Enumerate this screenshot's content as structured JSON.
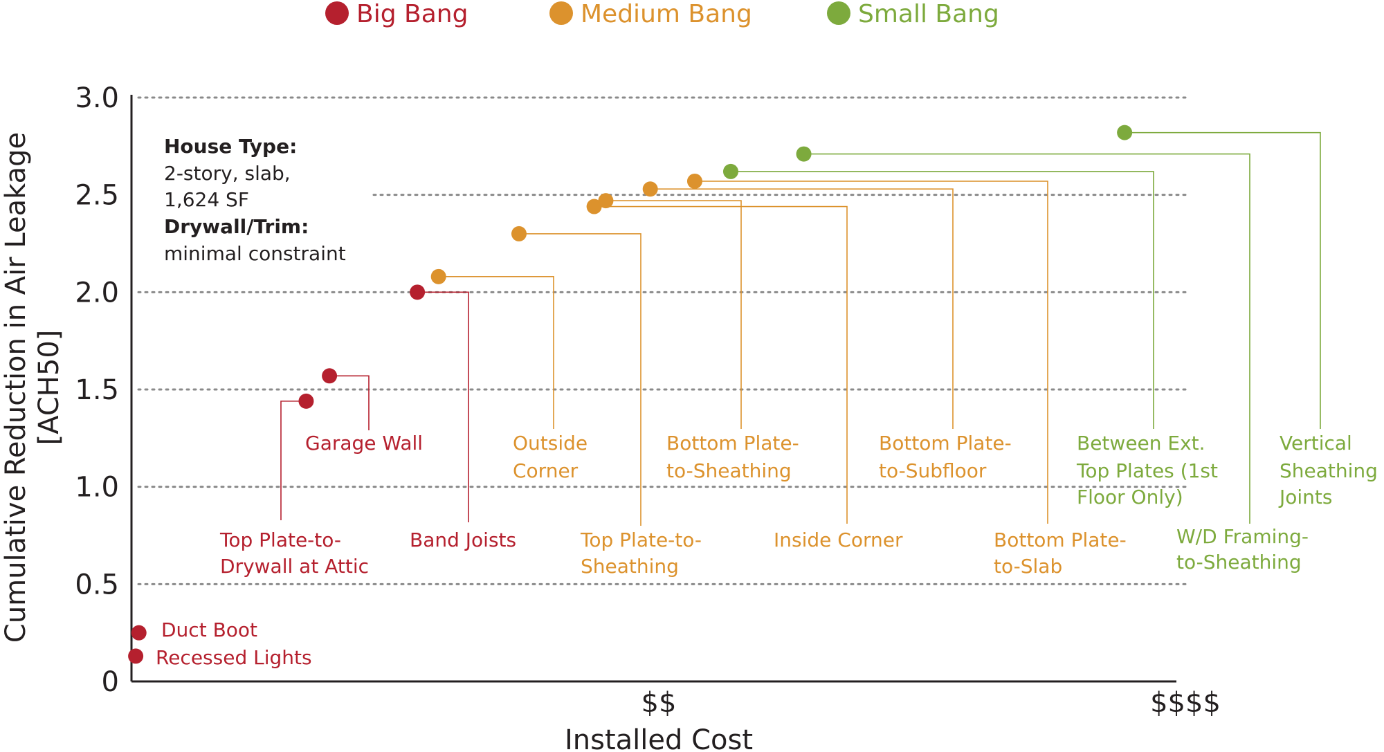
{
  "chart_data": {
    "type": "scatter",
    "xlabel": "Installed Cost",
    "ylabel_lines": [
      "Cumulative Reduction in Air Leakage",
      "[ACH50]"
    ],
    "ylim": [
      0,
      3.0
    ],
    "yticks": [
      {
        "value": 0,
        "label": "0"
      },
      {
        "value": 0.5,
        "label": "0.5"
      },
      {
        "value": 1.0,
        "label": "1.0"
      },
      {
        "value": 1.5,
        "label": "1.5"
      },
      {
        "value": 2.0,
        "label": "2.0"
      },
      {
        "value": 2.5,
        "label": "2.5"
      },
      {
        "value": 3.0,
        "label": "3.0"
      }
    ],
    "xticks": [
      {
        "value": 0.5,
        "label": "$$"
      },
      {
        "value": 1.0,
        "label": "$$$$"
      }
    ],
    "xlim": [
      0,
      1.0
    ],
    "grid": true,
    "legend": "top",
    "colors": {
      "big": "#b5202e",
      "medium": "#dc922d",
      "small": "#7daa3d"
    },
    "legend_entries": [
      {
        "key": "big",
        "label": "Big Bang"
      },
      {
        "key": "medium",
        "label": "Medium Bang"
      },
      {
        "key": "small",
        "label": "Small Bang"
      }
    ],
    "annotation": {
      "lines": [
        {
          "text": "House Type:",
          "bold": true
        },
        {
          "text": "2-story, slab,",
          "bold": false
        },
        {
          "text": "1,624 SF",
          "bold": false
        },
        {
          "text": "Drywall/Trim:",
          "bold": true
        },
        {
          "text": "minimal constraint",
          "bold": false
        }
      ]
    },
    "series": [
      {
        "key": "big",
        "points": [
          {
            "x": 0.004,
            "y": 0.13,
            "label_lines": [
              "Recessed Lights"
            ]
          },
          {
            "x": 0.007,
            "y": 0.25,
            "label_lines": [
              "Duct Boot"
            ]
          },
          {
            "x": 0.165,
            "y": 1.44,
            "label_lines": [
              "Top Plate-to-",
              "Drywall at Attic"
            ]
          },
          {
            "x": 0.187,
            "y": 1.57,
            "label_lines": [
              "Garage Wall"
            ]
          },
          {
            "x": 0.27,
            "y": 2.0,
            "label_lines": [
              "Band Joists"
            ]
          }
        ]
      },
      {
        "key": "medium",
        "points": [
          {
            "x": 0.29,
            "y": 2.08,
            "label_lines": [
              "Outside",
              "Corner"
            ]
          },
          {
            "x": 0.366,
            "y": 2.3,
            "label_lines": [
              "Top Plate-to-",
              "Sheathing"
            ]
          },
          {
            "x": 0.437,
            "y": 2.44,
            "label_lines": [
              "Inside Corner"
            ]
          },
          {
            "x": 0.448,
            "y": 2.47,
            "label_lines": [
              "Bottom Plate-",
              "to-Sheathing"
            ]
          },
          {
            "x": 0.49,
            "y": 2.53,
            "label_lines": [
              "Bottom Plate-",
              "to-Subfloor"
            ]
          },
          {
            "x": 0.532,
            "y": 2.57,
            "label_lines": [
              "Bottom Plate-",
              "to-Slab"
            ]
          }
        ]
      },
      {
        "key": "small",
        "points": [
          {
            "x": 0.566,
            "y": 2.62,
            "label_lines": [
              "Between Ext.",
              "Top Plates (1st",
              "Floor Only)"
            ]
          },
          {
            "x": 0.635,
            "y": 2.71,
            "label_lines": [
              "W/D Framing-",
              "to-Sheathing"
            ]
          },
          {
            "x": 0.938,
            "y": 2.82,
            "label_lines": [
              "Vertical",
              "Sheathing",
              "Joints"
            ]
          }
        ]
      }
    ]
  }
}
